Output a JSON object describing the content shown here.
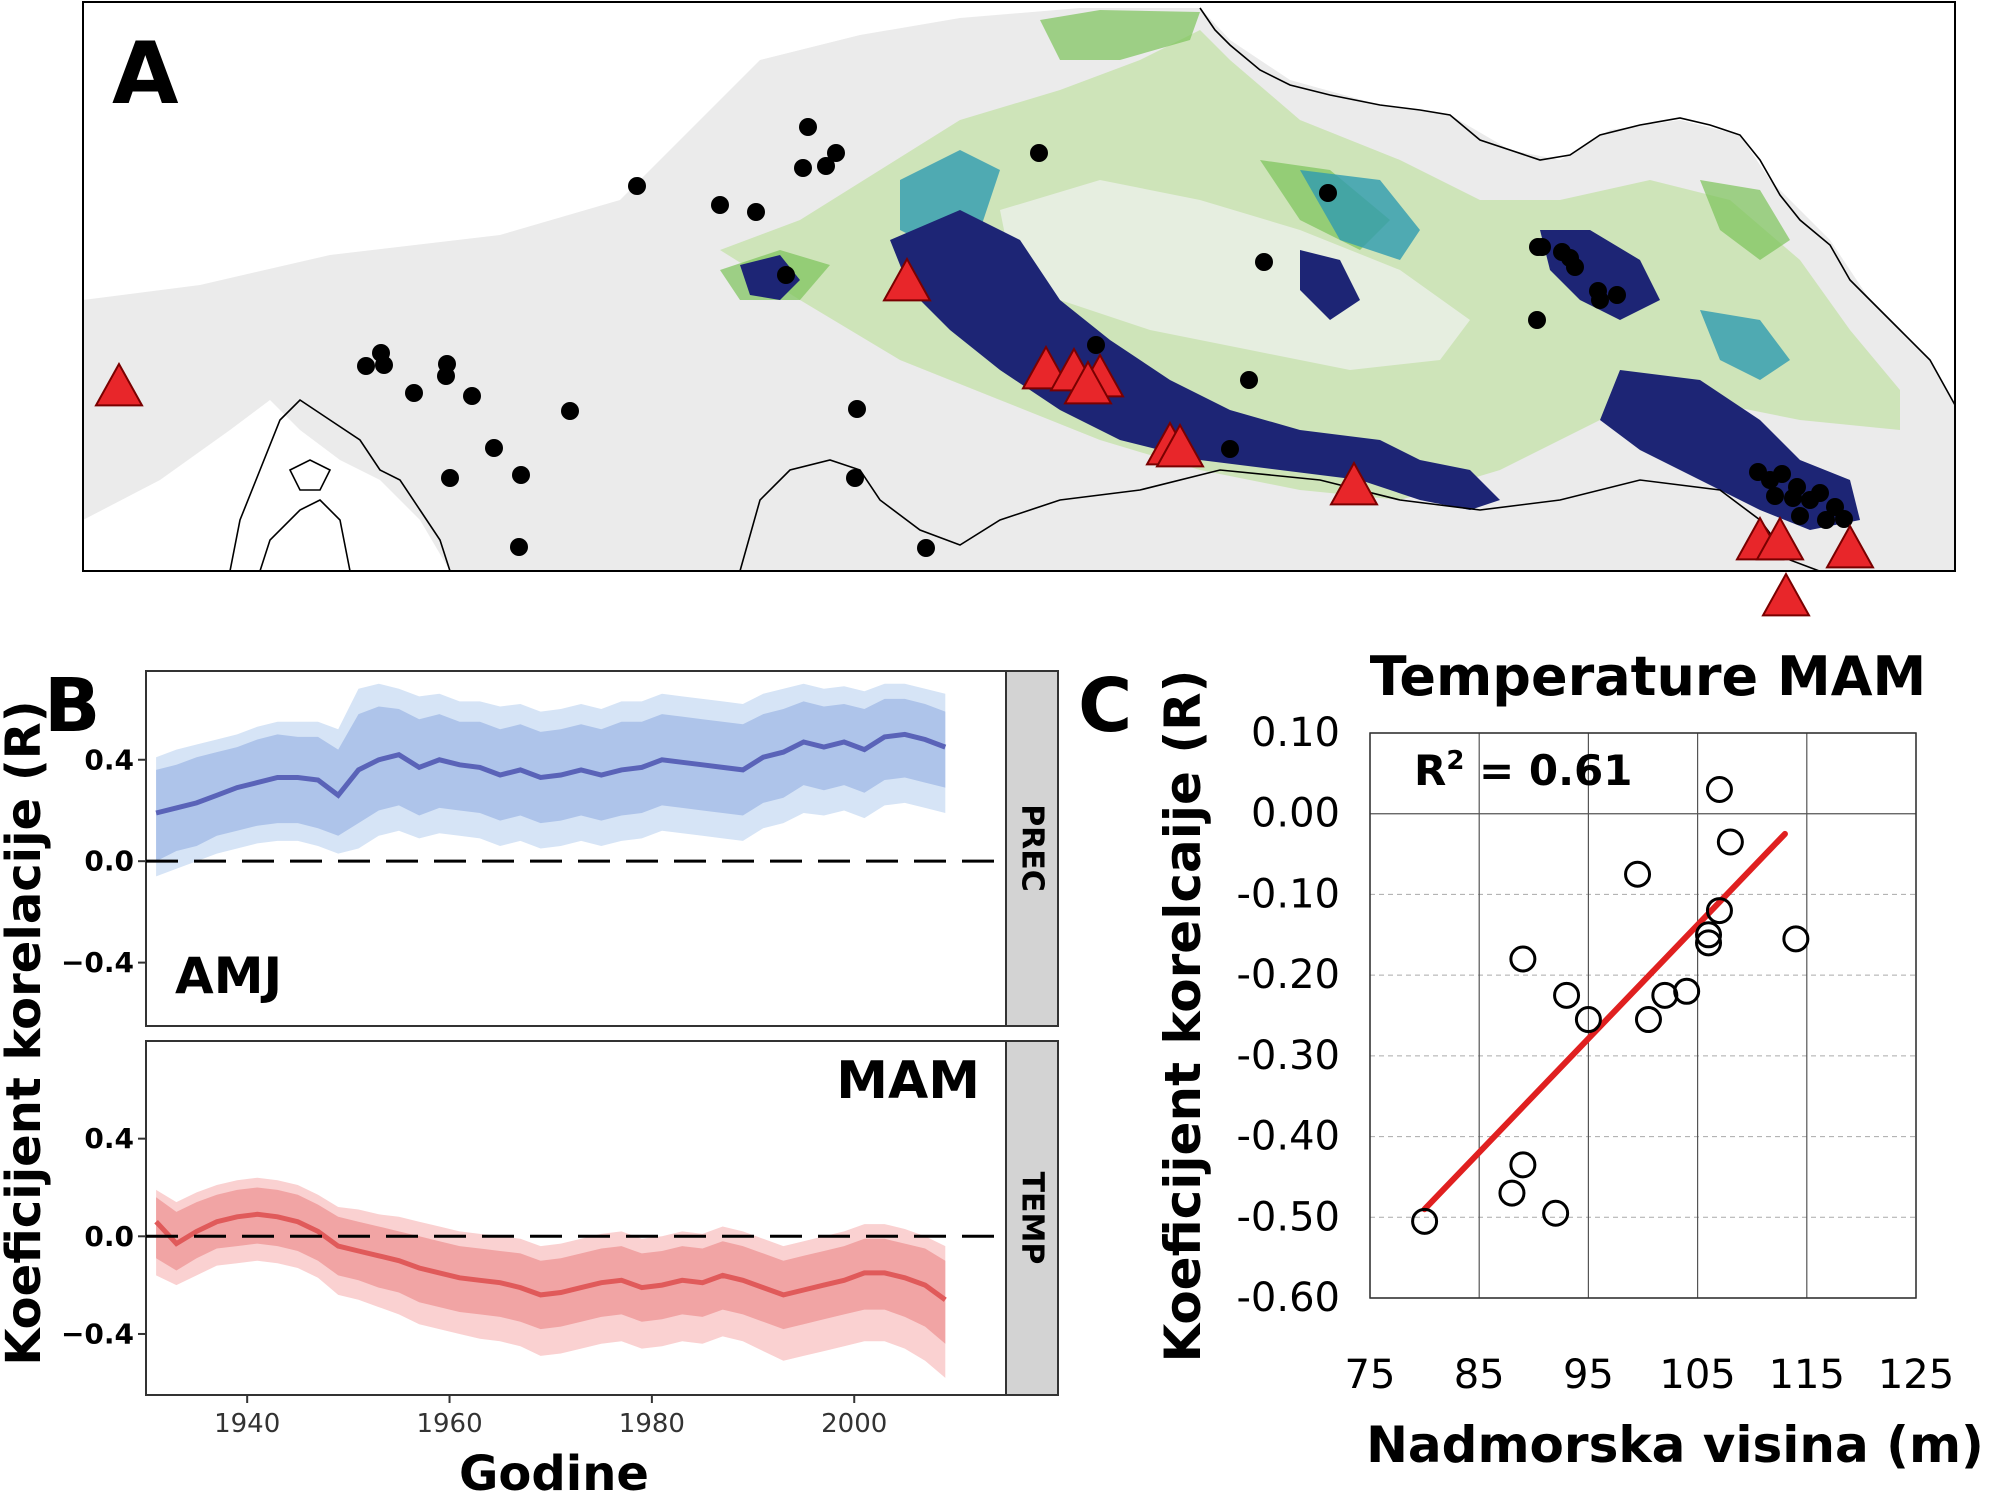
{
  "panel_labels": {
    "a": "A",
    "b": "B",
    "c": "C"
  },
  "colors": {
    "prec_line": "#5a63b8",
    "prec_inner": "#aec4ea",
    "prec_outer": "#d6e4f6",
    "temp_line": "#e05a5a",
    "temp_inner": "#f1a4a4",
    "temp_outer": "#fad1d1",
    "fit_line": "#e02020",
    "site_triangle": "#e8262a",
    "site_dot": "#000000",
    "strip": "#d3d3d3"
  },
  "map": {
    "legend_symbols": [
      "black-dot-site",
      "red-triangle-site"
    ]
  },
  "chart_data": [
    {
      "id": "panel-b",
      "type": "line",
      "ylabel": "Koeficijent korelacije (R)",
      "xlabel": "Godine",
      "xlim": [
        1930,
        2015
      ],
      "x_ticks": [
        1940,
        1960,
        1980,
        2000
      ],
      "y_ticks": [
        0.4,
        0.0,
        -0.4
      ],
      "y_tick_labels": [
        "0.4",
        "0.0",
        "−0.4"
      ],
      "facets": [
        {
          "strip": "PREC",
          "season": "AMJ",
          "ylim": [
            -0.65,
            0.75
          ],
          "x": [
            1931,
            1933,
            1935,
            1937,
            1939,
            1941,
            1943,
            1945,
            1947,
            1949,
            1951,
            1953,
            1955,
            1957,
            1959,
            1961,
            1963,
            1965,
            1967,
            1969,
            1971,
            1973,
            1975,
            1977,
            1979,
            1981,
            1983,
            1985,
            1987,
            1989,
            1991,
            1993,
            1995,
            1997,
            1999,
            2001,
            2003,
            2005,
            2007,
            2009
          ],
          "mean": [
            0.19,
            0.21,
            0.23,
            0.26,
            0.29,
            0.31,
            0.33,
            0.33,
            0.32,
            0.26,
            0.36,
            0.4,
            0.42,
            0.37,
            0.4,
            0.38,
            0.37,
            0.34,
            0.36,
            0.33,
            0.34,
            0.36,
            0.34,
            0.36,
            0.37,
            0.4,
            0.39,
            0.38,
            0.37,
            0.36,
            0.41,
            0.43,
            0.47,
            0.45,
            0.47,
            0.44,
            0.49,
            0.5,
            0.48,
            0.45
          ],
          "inner": [
            [
              0.0,
              0.36
            ],
            [
              0.04,
              0.38
            ],
            [
              0.06,
              0.41
            ],
            [
              0.1,
              0.43
            ],
            [
              0.12,
              0.45
            ],
            [
              0.14,
              0.48
            ],
            [
              0.15,
              0.5
            ],
            [
              0.15,
              0.49
            ],
            [
              0.13,
              0.49
            ],
            [
              0.1,
              0.44
            ],
            [
              0.15,
              0.58
            ],
            [
              0.2,
              0.61
            ],
            [
              0.22,
              0.6
            ],
            [
              0.18,
              0.56
            ],
            [
              0.21,
              0.58
            ],
            [
              0.2,
              0.55
            ],
            [
              0.19,
              0.55
            ],
            [
              0.16,
              0.52
            ],
            [
              0.18,
              0.54
            ],
            [
              0.15,
              0.51
            ],
            [
              0.16,
              0.52
            ],
            [
              0.18,
              0.54
            ],
            [
              0.16,
              0.52
            ],
            [
              0.18,
              0.55
            ],
            [
              0.19,
              0.55
            ],
            [
              0.22,
              0.58
            ],
            [
              0.21,
              0.57
            ],
            [
              0.2,
              0.56
            ],
            [
              0.19,
              0.55
            ],
            [
              0.18,
              0.54
            ],
            [
              0.23,
              0.58
            ],
            [
              0.25,
              0.6
            ],
            [
              0.3,
              0.63
            ],
            [
              0.28,
              0.61
            ],
            [
              0.3,
              0.62
            ],
            [
              0.27,
              0.6
            ],
            [
              0.32,
              0.64
            ],
            [
              0.33,
              0.64
            ],
            [
              0.31,
              0.62
            ],
            [
              0.29,
              0.59
            ]
          ],
          "outer": [
            [
              -0.06,
              0.41
            ],
            [
              -0.03,
              0.44
            ],
            [
              0.0,
              0.46
            ],
            [
              0.03,
              0.48
            ],
            [
              0.05,
              0.5
            ],
            [
              0.07,
              0.53
            ],
            [
              0.08,
              0.55
            ],
            [
              0.08,
              0.55
            ],
            [
              0.06,
              0.55
            ],
            [
              0.03,
              0.52
            ],
            [
              0.05,
              0.68
            ],
            [
              0.1,
              0.7
            ],
            [
              0.12,
              0.68
            ],
            [
              0.09,
              0.65
            ],
            [
              0.11,
              0.66
            ],
            [
              0.1,
              0.63
            ],
            [
              0.09,
              0.63
            ],
            [
              0.06,
              0.61
            ],
            [
              0.08,
              0.62
            ],
            [
              0.05,
              0.59
            ],
            [
              0.06,
              0.6
            ],
            [
              0.08,
              0.62
            ],
            [
              0.06,
              0.6
            ],
            [
              0.08,
              0.63
            ],
            [
              0.09,
              0.63
            ],
            [
              0.12,
              0.66
            ],
            [
              0.11,
              0.65
            ],
            [
              0.1,
              0.64
            ],
            [
              0.09,
              0.63
            ],
            [
              0.08,
              0.62
            ],
            [
              0.13,
              0.66
            ],
            [
              0.15,
              0.68
            ],
            [
              0.19,
              0.7
            ],
            [
              0.18,
              0.68
            ],
            [
              0.2,
              0.69
            ],
            [
              0.17,
              0.67
            ],
            [
              0.22,
              0.7
            ],
            [
              0.23,
              0.7
            ],
            [
              0.21,
              0.68
            ],
            [
              0.19,
              0.66
            ]
          ]
        },
        {
          "strip": "TEMP",
          "season": "MAM",
          "ylim": [
            -0.65,
            0.8
          ],
          "x": [
            1931,
            1933,
            1935,
            1937,
            1939,
            1941,
            1943,
            1945,
            1947,
            1949,
            1951,
            1953,
            1955,
            1957,
            1959,
            1961,
            1963,
            1965,
            1967,
            1969,
            1971,
            1973,
            1975,
            1977,
            1979,
            1981,
            1983,
            1985,
            1987,
            1989,
            1991,
            1993,
            1995,
            1997,
            1999,
            2001,
            2003,
            2005,
            2007,
            2009
          ],
          "mean": [
            0.06,
            -0.03,
            0.02,
            0.06,
            0.08,
            0.09,
            0.08,
            0.06,
            0.02,
            -0.04,
            -0.06,
            -0.08,
            -0.1,
            -0.13,
            -0.15,
            -0.17,
            -0.18,
            -0.19,
            -0.21,
            -0.24,
            -0.23,
            -0.21,
            -0.19,
            -0.18,
            -0.21,
            -0.2,
            -0.18,
            -0.19,
            -0.16,
            -0.18,
            -0.21,
            -0.24,
            -0.22,
            -0.2,
            -0.18,
            -0.15,
            -0.15,
            -0.17,
            -0.2,
            -0.26
          ],
          "inner": [
            [
              -0.09,
              0.16
            ],
            [
              -0.14,
              0.1
            ],
            [
              -0.09,
              0.14
            ],
            [
              -0.05,
              0.17
            ],
            [
              -0.04,
              0.19
            ],
            [
              -0.03,
              0.2
            ],
            [
              -0.04,
              0.19
            ],
            [
              -0.06,
              0.17
            ],
            [
              -0.1,
              0.13
            ],
            [
              -0.16,
              0.08
            ],
            [
              -0.18,
              0.06
            ],
            [
              -0.21,
              0.04
            ],
            [
              -0.23,
              0.02
            ],
            [
              -0.27,
              0.0
            ],
            [
              -0.29,
              -0.02
            ],
            [
              -0.31,
              -0.04
            ],
            [
              -0.32,
              -0.05
            ],
            [
              -0.33,
              -0.06
            ],
            [
              -0.35,
              -0.07
            ],
            [
              -0.38,
              -0.1
            ],
            [
              -0.37,
              -0.09
            ],
            [
              -0.35,
              -0.07
            ],
            [
              -0.33,
              -0.05
            ],
            [
              -0.32,
              -0.04
            ],
            [
              -0.35,
              -0.07
            ],
            [
              -0.34,
              -0.06
            ],
            [
              -0.32,
              -0.04
            ],
            [
              -0.33,
              -0.05
            ],
            [
              -0.3,
              -0.02
            ],
            [
              -0.32,
              -0.04
            ],
            [
              -0.35,
              -0.07
            ],
            [
              -0.38,
              -0.1
            ],
            [
              -0.36,
              -0.08
            ],
            [
              -0.34,
              -0.06
            ],
            [
              -0.32,
              -0.04
            ],
            [
              -0.3,
              -0.01
            ],
            [
              -0.3,
              -0.01
            ],
            [
              -0.33,
              -0.03
            ],
            [
              -0.37,
              -0.05
            ],
            [
              -0.44,
              -0.1
            ]
          ],
          "outer": [
            [
              -0.16,
              0.19
            ],
            [
              -0.2,
              0.14
            ],
            [
              -0.16,
              0.18
            ],
            [
              -0.12,
              0.21
            ],
            [
              -0.11,
              0.23
            ],
            [
              -0.1,
              0.24
            ],
            [
              -0.11,
              0.23
            ],
            [
              -0.13,
              0.21
            ],
            [
              -0.17,
              0.17
            ],
            [
              -0.24,
              0.12
            ],
            [
              -0.26,
              0.11
            ],
            [
              -0.29,
              0.09
            ],
            [
              -0.32,
              0.08
            ],
            [
              -0.36,
              0.06
            ],
            [
              -0.38,
              0.04
            ],
            [
              -0.4,
              0.02
            ],
            [
              -0.42,
              0.01
            ],
            [
              -0.43,
              0.0
            ],
            [
              -0.45,
              -0.01
            ],
            [
              -0.49,
              -0.04
            ],
            [
              -0.48,
              -0.03
            ],
            [
              -0.46,
              -0.01
            ],
            [
              -0.44,
              0.01
            ],
            [
              -0.43,
              0.02
            ],
            [
              -0.46,
              -0.01
            ],
            [
              -0.45,
              0.0
            ],
            [
              -0.43,
              0.02
            ],
            [
              -0.44,
              0.01
            ],
            [
              -0.41,
              0.04
            ],
            [
              -0.43,
              0.02
            ],
            [
              -0.47,
              -0.01
            ],
            [
              -0.51,
              -0.04
            ],
            [
              -0.49,
              -0.02
            ],
            [
              -0.47,
              0.0
            ],
            [
              -0.45,
              0.02
            ],
            [
              -0.43,
              0.05
            ],
            [
              -0.43,
              0.05
            ],
            [
              -0.46,
              0.03
            ],
            [
              -0.51,
              0.0
            ],
            [
              -0.58,
              -0.04
            ]
          ]
        }
      ]
    },
    {
      "id": "panel-c",
      "type": "scatter",
      "title": "Temperature MAM",
      "annotation_prefix": "R",
      "annotation_sup": "2",
      "annotation_value": " = 0.61",
      "xlabel": "Nadmorska visina (m)",
      "ylabel": "Koeficijent korelcaije (R)",
      "xlim": [
        75,
        125
      ],
      "ylim": [
        -0.6,
        0.1
      ],
      "x_ticks": [
        75,
        85,
        95,
        105,
        115,
        125
      ],
      "x_tick_labels": [
        "75",
        "85",
        "95",
        "105",
        "115",
        "125"
      ],
      "y_ticks": [
        0.1,
        0.0,
        -0.1,
        -0.2,
        -0.3,
        -0.4,
        -0.5,
        -0.6
      ],
      "y_tick_labels": [
        "0.10",
        "0.00",
        "-0.10",
        "-0.20",
        "-0.30",
        "-0.40",
        "-0.50",
        "-0.60"
      ],
      "points": [
        [
          80,
          -0.505
        ],
        [
          88,
          -0.47
        ],
        [
          89,
          -0.435
        ],
        [
          89,
          -0.18
        ],
        [
          92,
          -0.495
        ],
        [
          93,
          -0.225
        ],
        [
          95,
          -0.255
        ],
        [
          99.5,
          -0.075
        ],
        [
          100.5,
          -0.255
        ],
        [
          102,
          -0.225
        ],
        [
          104,
          -0.22
        ],
        [
          106,
          -0.16
        ],
        [
          106,
          -0.15
        ],
        [
          107,
          -0.12
        ],
        [
          107,
          0.03
        ],
        [
          108,
          -0.035
        ],
        [
          114,
          -0.155
        ]
      ],
      "fit_line": [
        [
          80,
          -0.49
        ],
        [
          113,
          -0.025
        ]
      ]
    }
  ]
}
